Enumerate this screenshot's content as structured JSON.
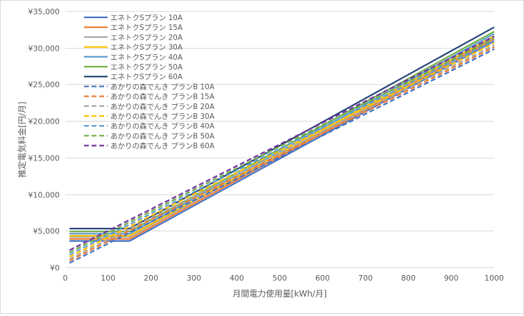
{
  "chart_data": {
    "type": "line",
    "title": "",
    "xlabel": "月間電力使用量[kWh/月]",
    "ylabel": "推定電気料金[円/月]",
    "xlim": [
      0,
      1000
    ],
    "ylim": [
      0,
      35000
    ],
    "x_ticks": [
      "0",
      "100",
      "200",
      "300",
      "400",
      "500",
      "600",
      "700",
      "800",
      "900",
      "1000"
    ],
    "y_ticks": [
      "¥0",
      "¥5,000",
      "¥10,000",
      "¥15,000",
      "¥20,000",
      "¥25,000",
      "¥30,000",
      "¥35,000"
    ],
    "grid": "horizontal",
    "legend_position": "top-left inside",
    "series": [
      {
        "name": "エネトクSプラン 10A",
        "color": "#4472C4",
        "style": "solid",
        "points": [
          [
            10,
            3600
          ],
          [
            150,
            3600
          ],
          [
            1000,
            30900
          ]
        ]
      },
      {
        "name": "エネトクSプラン 15A",
        "color": "#ED7D31",
        "style": "solid",
        "points": [
          [
            10,
            3880
          ],
          [
            150,
            3880
          ],
          [
            1000,
            31200
          ]
        ]
      },
      {
        "name": "エネトクSプラン 20A",
        "color": "#A5A5A5",
        "style": "solid",
        "points": [
          [
            10,
            4160
          ],
          [
            150,
            4160
          ],
          [
            1000,
            31450
          ]
        ]
      },
      {
        "name": "エネトクSプラン 30A",
        "color": "#FFC000",
        "style": "solid",
        "points": [
          [
            10,
            4320
          ],
          [
            150,
            4320
          ],
          [
            1000,
            31600
          ]
        ]
      },
      {
        "name": "エネトクSプラン 40A",
        "color": "#5B9BD5",
        "style": "solid",
        "points": [
          [
            10,
            4600
          ],
          [
            150,
            4600
          ],
          [
            1000,
            31900
          ]
        ]
      },
      {
        "name": "エネトクSプラン 50A",
        "color": "#70AD47",
        "style": "solid",
        "points": [
          [
            10,
            4900
          ],
          [
            150,
            4900
          ],
          [
            1000,
            32200
          ]
        ]
      },
      {
        "name": "エネトクSプラン 60A",
        "color": "#264478",
        "style": "solid",
        "points": [
          [
            10,
            5300
          ],
          [
            150,
            5300
          ],
          [
            1000,
            32800
          ]
        ]
      },
      {
        "name": "あかりの森でんき プランB 10A",
        "color": "#4472C4",
        "style": "dashed",
        "points": [
          [
            10,
            600
          ],
          [
            1000,
            29800
          ]
        ]
      },
      {
        "name": "あかりの森でんき プランB 15A",
        "color": "#ED7D31",
        "style": "dashed",
        "points": [
          [
            10,
            900
          ],
          [
            1000,
            30100
          ]
        ]
      },
      {
        "name": "あかりの森でんき プランB 20A",
        "color": "#A5A5A5",
        "style": "dashed",
        "points": [
          [
            10,
            1150
          ],
          [
            1000,
            30350
          ]
        ]
      },
      {
        "name": "あかりの森でんき プランB 30A",
        "color": "#FFC000",
        "style": "dashed",
        "points": [
          [
            10,
            1450
          ],
          [
            1000,
            30650
          ]
        ]
      },
      {
        "name": "あかりの森でんき プランB 40A",
        "color": "#5B9BD5",
        "style": "dashed",
        "points": [
          [
            10,
            1750
          ],
          [
            1000,
            30950
          ]
        ]
      },
      {
        "name": "あかりの森でんき プランB 50A",
        "color": "#70AD47",
        "style": "dashed",
        "points": [
          [
            10,
            2050
          ],
          [
            1000,
            31250
          ]
        ]
      },
      {
        "name": "あかりの森でんき プランB 60A",
        "color": "#7030A0",
        "style": "dashed",
        "points": [
          [
            10,
            2350
          ],
          [
            1000,
            31550
          ]
        ]
      }
    ]
  }
}
